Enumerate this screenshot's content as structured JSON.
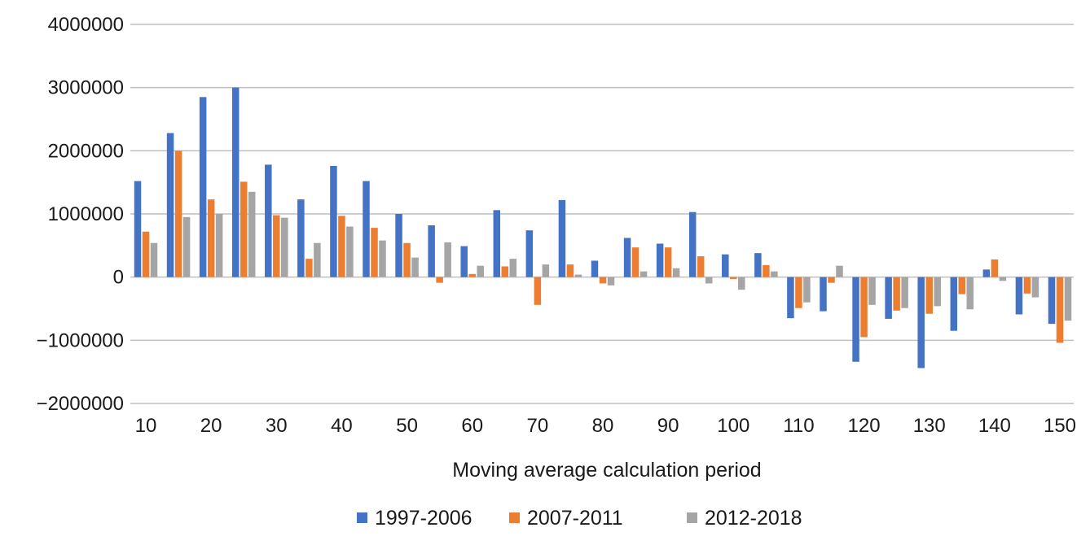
{
  "chart_data": {
    "type": "bar",
    "xlabel": "Moving average calculation period",
    "ylabel": "",
    "ylim": [
      -2000000,
      4000000
    ],
    "yticks": [
      4000000,
      3000000,
      2000000,
      1000000,
      0,
      -1000000,
      -2000000
    ],
    "ytick_labels": [
      "4000000",
      "3000000",
      "2000000",
      "1000000",
      "0",
      "−1000000",
      "−2000000"
    ],
    "categories": [
      10,
      15,
      20,
      25,
      30,
      35,
      40,
      45,
      50,
      55,
      60,
      65,
      70,
      75,
      80,
      85,
      90,
      95,
      100,
      105,
      110,
      115,
      120,
      125,
      130,
      135,
      140,
      145,
      150
    ],
    "xtick_labels": [
      "10",
      "20",
      "30",
      "40",
      "50",
      "60",
      "70",
      "80",
      "90",
      "100",
      "110",
      "120",
      "130",
      "140",
      "150"
    ],
    "grid": true,
    "legend_position": "bottom",
    "series": [
      {
        "name": "1997-2006",
        "color": "#4472c4",
        "values": [
          1520000,
          2280000,
          2850000,
          3000000,
          1780000,
          1230000,
          1760000,
          1520000,
          1000000,
          820000,
          490000,
          1060000,
          740000,
          1220000,
          260000,
          620000,
          530000,
          1030000,
          360000,
          380000,
          -650000,
          -540000,
          -1340000,
          -660000,
          -1440000,
          -850000,
          120000,
          -590000,
          -740000
        ]
      },
      {
        "name": "2007-2011",
        "color": "#ed7d31",
        "values": [
          720000,
          2000000,
          1230000,
          1510000,
          980000,
          290000,
          970000,
          780000,
          540000,
          -90000,
          50000,
          170000,
          -440000,
          200000,
          -100000,
          470000,
          470000,
          330000,
          -30000,
          190000,
          -490000,
          -90000,
          -950000,
          -530000,
          -580000,
          -270000,
          280000,
          -260000,
          -1040000
        ]
      },
      {
        "name": "2012-2018",
        "color": "#a5a5a5",
        "values": [
          540000,
          950000,
          1000000,
          1350000,
          940000,
          540000,
          800000,
          580000,
          310000,
          550000,
          180000,
          290000,
          200000,
          40000,
          -130000,
          90000,
          140000,
          -100000,
          -200000,
          90000,
          -400000,
          180000,
          -440000,
          -490000,
          -460000,
          -510000,
          -60000,
          -320000,
          -690000
        ]
      }
    ]
  }
}
